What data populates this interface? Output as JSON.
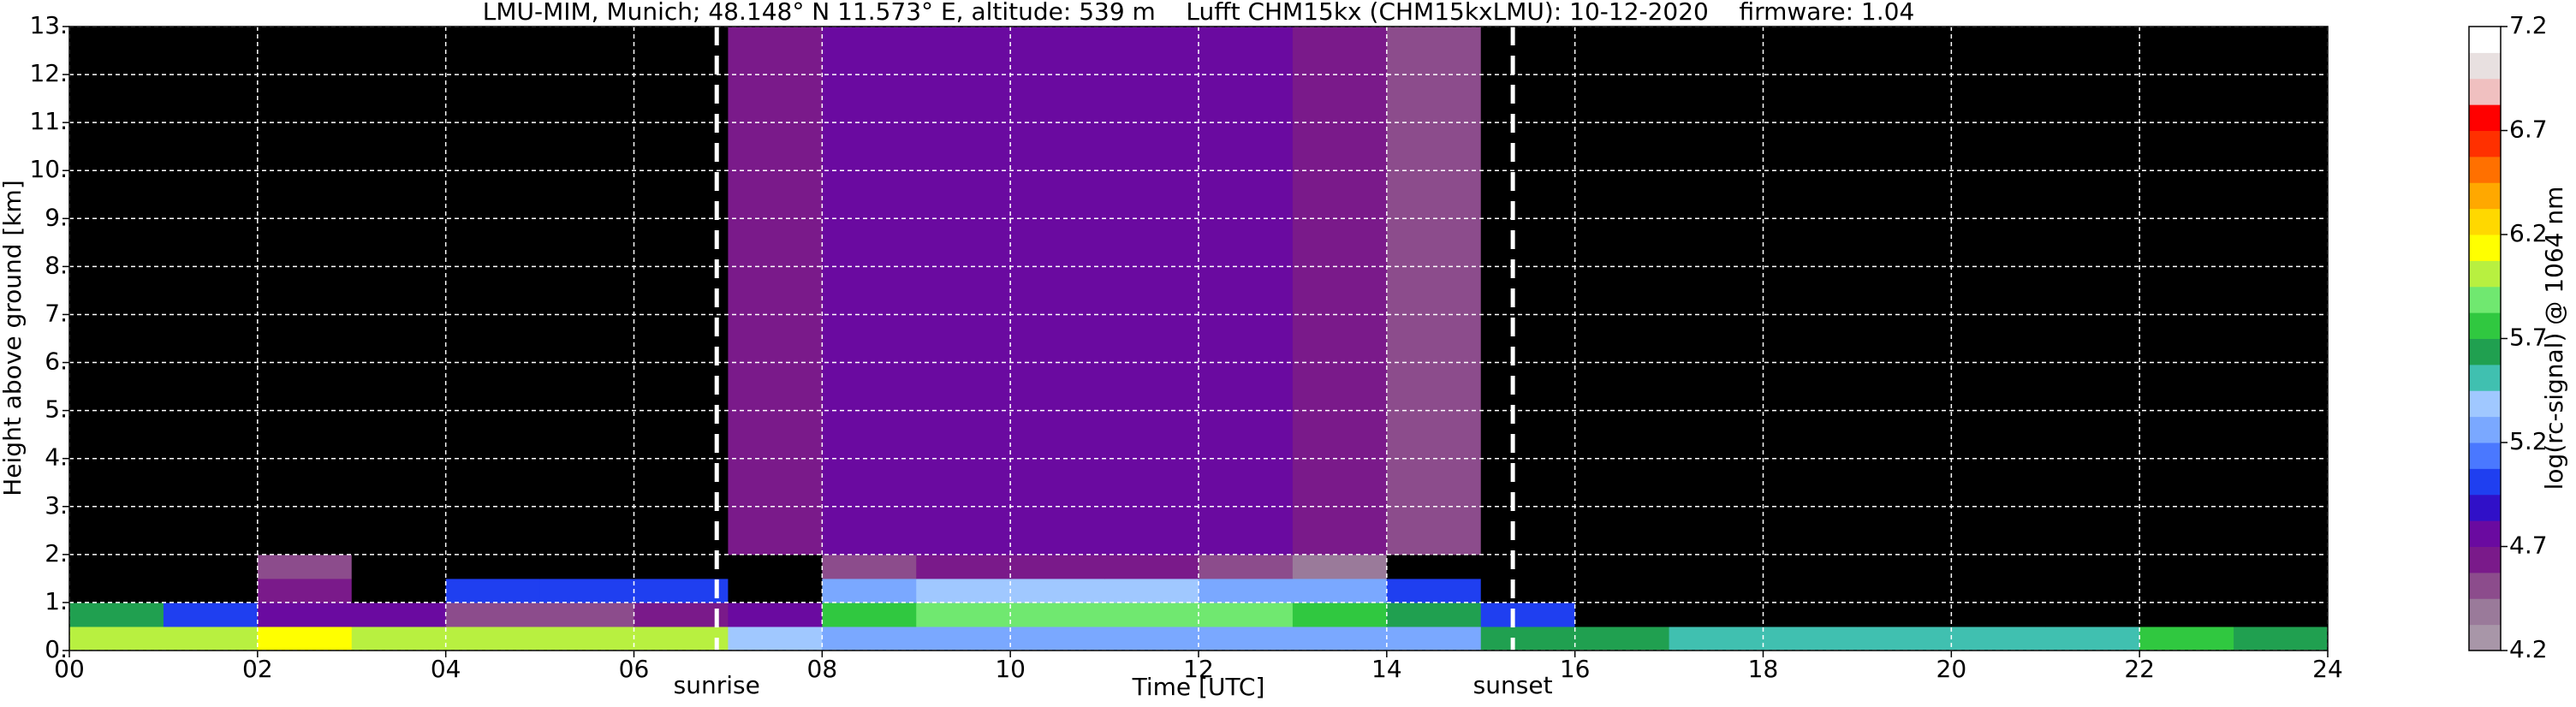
{
  "chart_data": {
    "type": "heatmap",
    "title": "LMU-MIM, Munich; 48.148° N 11.573° E, altitude: 539 m    Lufft CHM15kx (CHM15kxLMU): 10-12-2020    firmware: 1.04",
    "x_label": "Time [UTC]",
    "y_label": "Height above ground [km]",
    "colorbar_label": "log(rc-signal) @ 1064 nm",
    "xlim": [
      0,
      24
    ],
    "ylim": [
      0,
      13
    ],
    "xticks": [
      {
        "value": 0,
        "label": "00"
      },
      {
        "value": 2,
        "label": "02"
      },
      {
        "value": 4,
        "label": "04"
      },
      {
        "value": 6,
        "label": "06"
      },
      {
        "value": 8,
        "label": "08"
      },
      {
        "value": 10,
        "label": "10"
      },
      {
        "value": 12,
        "label": "12"
      },
      {
        "value": 14,
        "label": "14"
      },
      {
        "value": 16,
        "label": "16"
      },
      {
        "value": 18,
        "label": "18"
      },
      {
        "value": 20,
        "label": "20"
      },
      {
        "value": 22,
        "label": "22"
      },
      {
        "value": 24,
        "label": "24"
      }
    ],
    "yticks": [
      {
        "value": 0,
        "label": "0."
      },
      {
        "value": 1,
        "label": "1."
      },
      {
        "value": 2,
        "label": "2."
      },
      {
        "value": 3,
        "label": "3."
      },
      {
        "value": 4,
        "label": "4."
      },
      {
        "value": 5,
        "label": "5."
      },
      {
        "value": 6,
        "label": "6."
      },
      {
        "value": 7,
        "label": "7."
      },
      {
        "value": 8,
        "label": "8."
      },
      {
        "value": 9,
        "label": "9."
      },
      {
        "value": 10,
        "label": "10."
      },
      {
        "value": 11,
        "label": "11."
      },
      {
        "value": 12,
        "label": "12."
      },
      {
        "value": 13,
        "label": "13."
      }
    ],
    "grid": true,
    "x_edges": [
      0,
      1,
      2,
      3,
      4,
      5,
      6,
      7,
      8,
      9,
      10,
      11,
      12,
      13,
      14,
      15,
      16,
      17,
      18,
      19,
      20,
      21,
      22,
      23,
      24
    ],
    "y_edges": [
      0,
      0.5,
      1,
      1.5,
      2,
      13
    ],
    "z": [
      [
        6.0,
        6.0,
        6.1,
        6.0,
        6.0,
        6.0,
        6.0,
        5.4,
        5.3,
        5.3,
        5.3,
        5.3,
        5.3,
        5.3,
        5.3,
        5.6,
        5.6,
        5.5,
        5.5,
        5.5,
        5.5,
        5.5,
        5.7,
        5.6
      ],
      [
        5.6,
        5.0,
        4.8,
        4.8,
        4.5,
        4.5,
        4.6,
        4.8,
        5.8,
        5.9,
        5.9,
        5.9,
        5.9,
        5.8,
        5.6,
        5.0,
        3.5,
        3.5,
        3.5,
        3.5,
        3.5,
        3.5,
        3.5,
        3.5
      ],
      [
        3.5,
        3.5,
        4.6,
        3.5,
        5.0,
        5.0,
        5.0,
        3.5,
        5.3,
        5.4,
        5.4,
        5.4,
        5.3,
        5.2,
        5.0,
        3.5,
        3.5,
        3.5,
        3.5,
        3.5,
        3.5,
        3.5,
        3.5,
        3.5
      ],
      [
        3.5,
        3.5,
        4.5,
        3.5,
        3.5,
        3.5,
        3.5,
        3.5,
        4.5,
        4.6,
        4.6,
        4.6,
        4.5,
        4.4,
        3.5,
        3.5,
        3.5,
        3.5,
        3.5,
        3.5,
        3.5,
        3.5,
        3.5,
        3.5
      ],
      [
        3.8,
        3.8,
        3.8,
        3.8,
        3.8,
        3.8,
        3.8,
        4.6,
        4.7,
        4.8,
        4.8,
        4.8,
        4.7,
        4.6,
        4.5,
        3.8,
        3.8,
        3.8,
        3.8,
        3.8,
        3.8,
        3.8,
        3.8,
        3.8
      ]
    ],
    "clim": [
      4.2,
      7.2
    ],
    "colorbar_ticks": [
      4.2,
      4.7,
      5.2,
      5.7,
      6.2,
      6.7,
      7.2
    ],
    "under_color": "#000000",
    "colors": [
      "#a896a8",
      "#9a7a9a",
      "#8c4c8c",
      "#7a1a8a",
      "#6a0aa0",
      "#3010c8",
      "#1f3ff0",
      "#4a78ff",
      "#7aa8ff",
      "#a0c8ff",
      "#40c0b0",
      "#20a050",
      "#30c840",
      "#70e870",
      "#b8f040",
      "#ffff00",
      "#ffd800",
      "#ffa800",
      "#ff7000",
      "#ff3000",
      "#ff0000",
      "#f0c0c0",
      "#e8e0e0",
      "#ffffff"
    ],
    "vlines": [
      {
        "x": 6.88,
        "label": "sunrise"
      },
      {
        "x": 15.34,
        "label": "sunset"
      }
    ]
  }
}
